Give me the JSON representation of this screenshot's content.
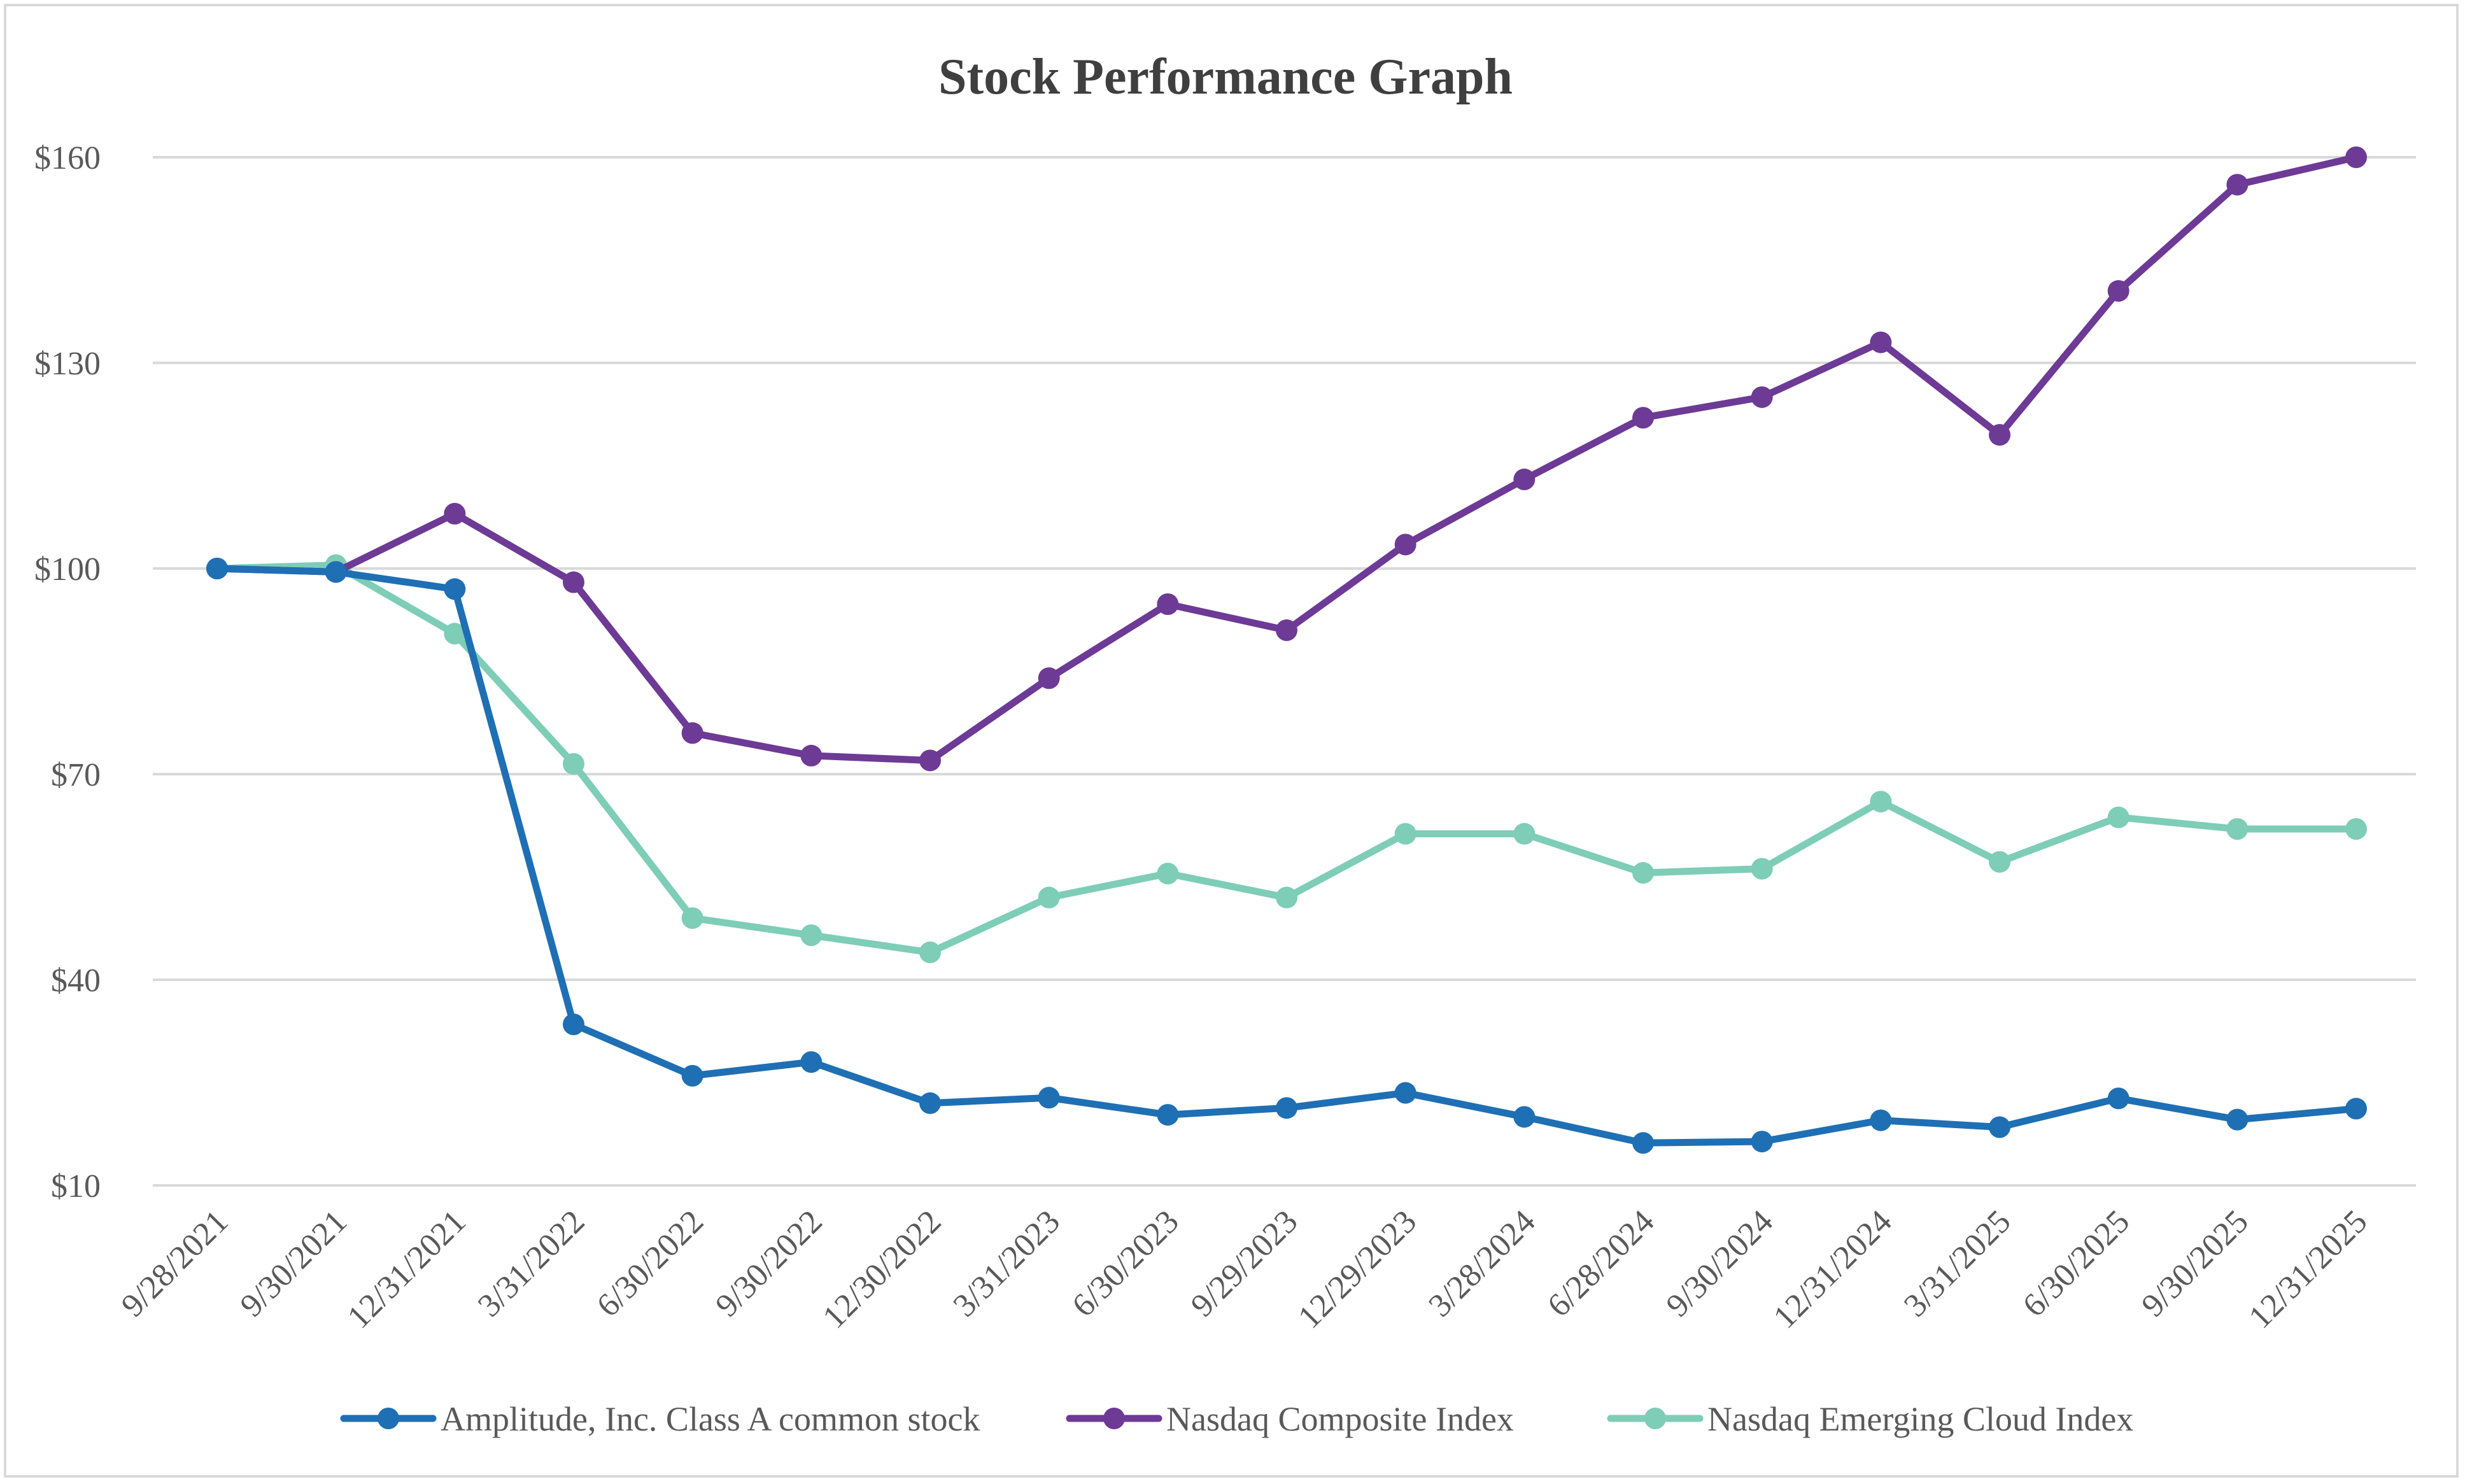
{
  "chart_data": {
    "type": "line",
    "title": "Stock Performance Graph",
    "xlabel": "",
    "ylabel": "",
    "ylim": [
      10,
      160
    ],
    "y_ticks": [
      10,
      40,
      70,
      100,
      130,
      160
    ],
    "y_tick_labels": [
      "$10",
      "$40",
      "$70",
      "$100",
      "$130",
      "$160"
    ],
    "grid": true,
    "legend_position": "bottom",
    "categories": [
      "9/28/2021",
      "9/30/2021",
      "12/31/2021",
      "3/31/2022",
      "6/30/2022",
      "9/30/2022",
      "12/30/2022",
      "3/31/2023",
      "6/30/2023",
      "9/29/2023",
      "12/29/2023",
      "3/28/2024",
      "6/28/2024",
      "9/30/2024",
      "12/31/2024",
      "3/31/2025",
      "6/30/2025",
      "9/30/2025",
      "12/31/2025"
    ],
    "series": [
      {
        "name": "Amplitude, Inc. Class A common stock",
        "color": "#1f6fb4",
        "values": [
          100,
          99.5,
          97,
          33.5,
          26,
          28,
          22,
          22.8,
          20.3,
          21.3,
          23.5,
          20,
          16.2,
          16.4,
          19.5,
          18.5,
          22.7,
          19.6,
          21.2
        ]
      },
      {
        "name": "Nasdaq Composite Index",
        "color": "#6d3a96",
        "values": [
          100,
          99.5,
          108,
          98,
          76,
          72.7,
          72,
          84,
          94.8,
          91,
          103.5,
          113,
          122,
          125,
          133,
          119.5,
          140.5,
          156,
          160
        ]
      },
      {
        "name": "Nasdaq Emerging Cloud Index",
        "color": "#7ecdb7",
        "values": [
          100,
          100.5,
          90.5,
          71.5,
          49,
          46.5,
          44,
          52,
          55.5,
          52,
          61.3,
          61.3,
          55.6,
          56.2,
          66,
          57.2,
          63.7,
          62,
          62
        ]
      }
    ]
  }
}
